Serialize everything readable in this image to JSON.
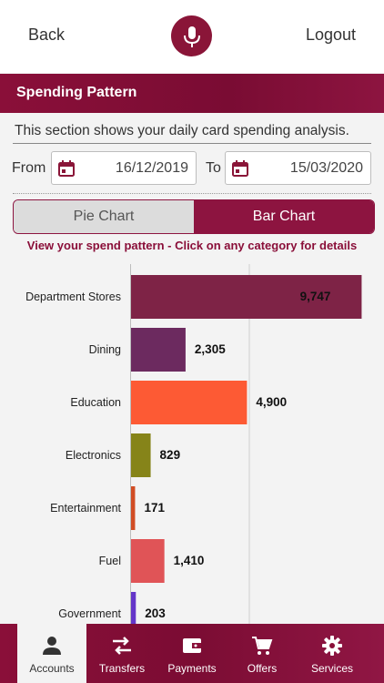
{
  "header": {
    "back_label": "Back",
    "logout_label": "Logout"
  },
  "section": {
    "title": "Spending Pattern",
    "description": "This section shows your daily card spending analysis."
  },
  "dates": {
    "from_label": "From",
    "from_value": "16/12/2019",
    "to_label": "To",
    "to_value": "15/03/2020"
  },
  "toggle": {
    "pie_label": "Pie Chart",
    "bar_label": "Bar Chart",
    "selected": "Bar Chart"
  },
  "hint": "View your spend pattern - Click on any category for details",
  "chart_data": {
    "type": "bar",
    "orientation": "horizontal",
    "categories": [
      "Department Stores",
      "Dining",
      "Education",
      "Electronics",
      "Entertainment",
      "Fuel",
      "Government"
    ],
    "values": [
      9747,
      2305,
      4900,
      829,
      171,
      1410,
      203
    ],
    "labels": [
      "9,747",
      "2,305",
      "4,900",
      "829",
      "171",
      "1,410",
      "203"
    ],
    "colors": [
      "#7e2346",
      "#6c2a5f",
      "#fd5a34",
      "#868419",
      "#d14d24",
      "#e05457",
      "#6436c9"
    ],
    "xlim": [
      0,
      10000
    ],
    "grid": true
  },
  "nav": {
    "items": [
      {
        "label": "Accounts",
        "icon": "person-icon",
        "active": true
      },
      {
        "label": "Transfers",
        "icon": "transfer-arrows-icon",
        "active": false
      },
      {
        "label": "Payments",
        "icon": "wallet-icon",
        "active": false
      },
      {
        "label": "Offers",
        "icon": "cart-icon",
        "active": false
      },
      {
        "label": "Services",
        "icon": "gear-icon",
        "active": false
      }
    ]
  },
  "colors": {
    "brand": "#8a0f39",
    "background": "#f3f3f3"
  }
}
